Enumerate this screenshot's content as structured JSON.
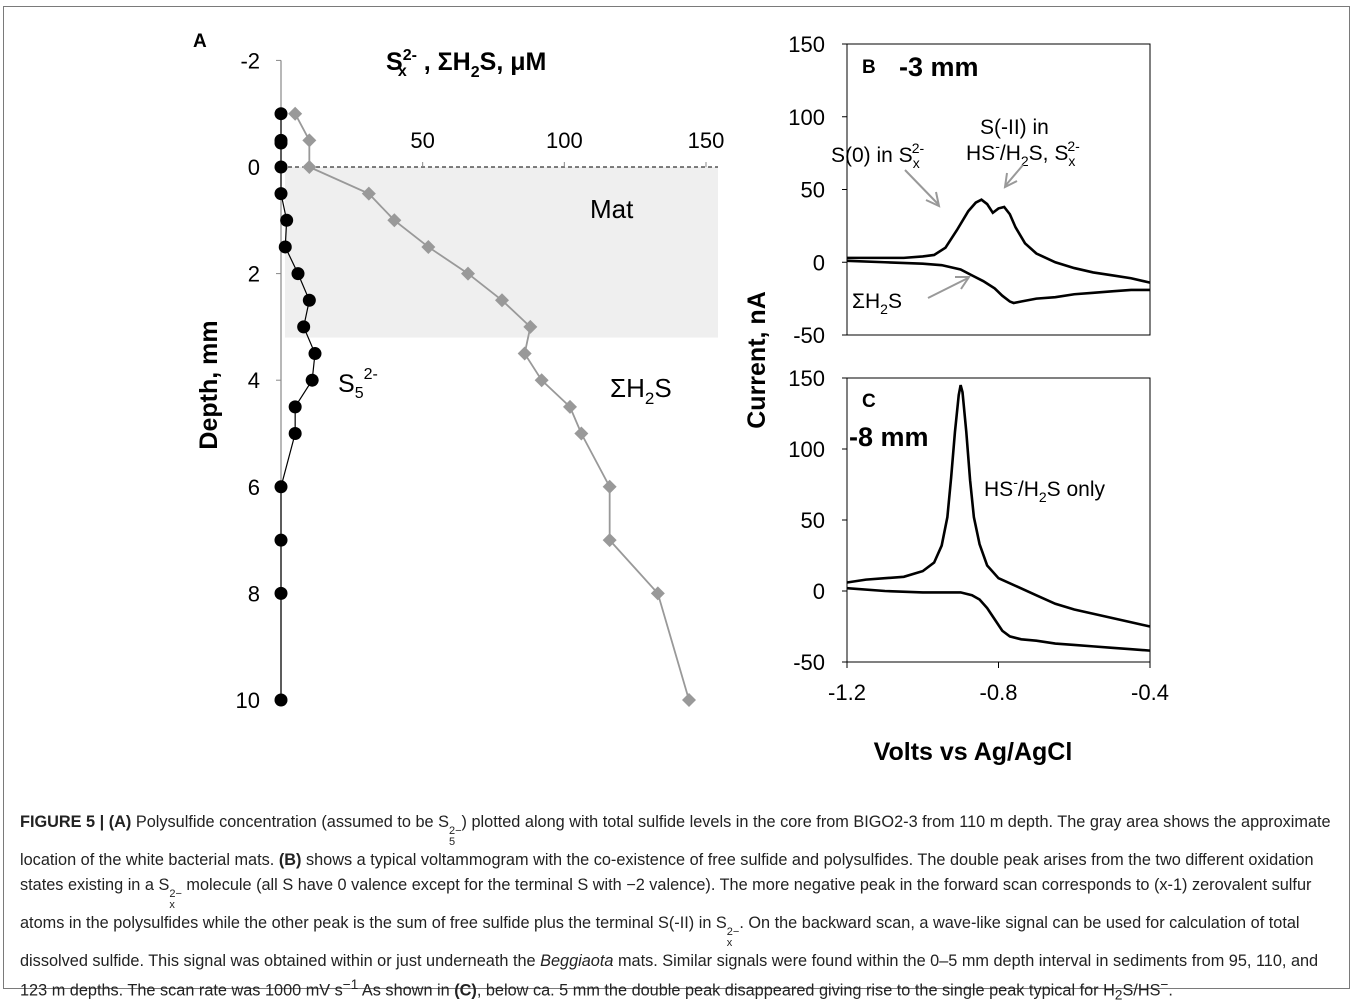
{
  "chart_data": [
    {
      "panel_label": "A",
      "type": "scatter",
      "xlabel_parts": [
        "S",
        "x",
        "2-",
        " , ΣH",
        "2",
        "S, μM"
      ],
      "ylabel": "Depth, mm",
      "xlim": [
        0,
        150
      ],
      "ylim": [
        -2,
        10
      ],
      "x_ticks": [
        "50",
        "100",
        "150"
      ],
      "y_ticks": [
        "-2",
        "0",
        "2",
        "4",
        "6",
        "8",
        "10"
      ],
      "shaded_region": {
        "depth": [
          0,
          3.2
        ],
        "label": "Mat"
      },
      "series": [
        {
          "label_parts": [
            "S",
            "5",
            "2-"
          ],
          "color": "#000000",
          "marker": "circle",
          "points": [
            [
              0,
              -1
            ],
            [
              0,
              -0.5
            ],
            [
              0,
              -0.45
            ],
            [
              0,
              0
            ],
            [
              0,
              0.5
            ],
            [
              2,
              1
            ],
            [
              1.5,
              1.5
            ],
            [
              6,
              2
            ],
            [
              10,
              2.5
            ],
            [
              8,
              3
            ],
            [
              12,
              3.5
            ],
            [
              11,
              4
            ],
            [
              5,
              4.5
            ],
            [
              5,
              5
            ],
            [
              0,
              6
            ],
            [
              0,
              7
            ],
            [
              0,
              8
            ],
            [
              0,
              10
            ]
          ]
        },
        {
          "label_parts": [
            "ΣH",
            "2",
            "S"
          ],
          "color": "#999999",
          "marker": "diamond",
          "points": [
            [
              5,
              -1
            ],
            [
              10,
              -0.5
            ],
            [
              10,
              0
            ],
            [
              31,
              0.5
            ],
            [
              40,
              1
            ],
            [
              52,
              1.5
            ],
            [
              66,
              2
            ],
            [
              78,
              2.5
            ],
            [
              88,
              3
            ],
            [
              86,
              3.5
            ],
            [
              92,
              4
            ],
            [
              102,
              4.5
            ],
            [
              106,
              5
            ],
            [
              116,
              6
            ],
            [
              116,
              7
            ],
            [
              133,
              8
            ],
            [
              144,
              10
            ]
          ]
        }
      ]
    },
    {
      "panel_label": "B",
      "title": "-3 mm",
      "type": "line",
      "xlim": [
        -1.2,
        -0.4
      ],
      "ylim": [
        -50,
        150
      ],
      "y_ticks": [
        "150",
        "100",
        "50",
        "0",
        "-50"
      ],
      "annotations": [
        {
          "parts": [
            "S(0) in S",
            "x",
            "2-"
          ]
        },
        {
          "parts": [
            "S(-II) in"
          ]
        },
        {
          "parts": [
            "HS",
            "-",
            "/H",
            "2",
            "S, S",
            "x",
            "2-"
          ]
        },
        {
          "parts": [
            "ΣH",
            "2",
            "S"
          ]
        }
      ],
      "series": [
        {
          "name": "forward",
          "color": "#000000",
          "x": [
            -1.2,
            -1.15,
            -1.1,
            -1.05,
            -1.0,
            -0.97,
            -0.94,
            -0.91,
            -0.88,
            -0.86,
            -0.845,
            -0.83,
            -0.815,
            -0.8,
            -0.785,
            -0.77,
            -0.755,
            -0.73,
            -0.7,
            -0.65,
            -0.6,
            -0.55,
            -0.5,
            -0.45,
            -0.4
          ],
          "y": [
            3,
            3,
            3,
            3,
            4,
            5,
            10,
            22,
            35,
            41,
            43,
            40,
            34,
            37,
            38,
            33,
            24,
            13,
            6,
            0,
            -4,
            -7,
            -9,
            -11,
            -14
          ]
        },
        {
          "name": "backward",
          "color": "#000000",
          "x": [
            -1.2,
            -1.1,
            -1.0,
            -0.95,
            -0.9,
            -0.87,
            -0.84,
            -0.81,
            -0.79,
            -0.77,
            -0.76,
            -0.74,
            -0.7,
            -0.65,
            -0.6,
            -0.55,
            -0.5,
            -0.45,
            -0.4
          ],
          "y": [
            1,
            0,
            -1,
            -2,
            -5,
            -9,
            -13,
            -18,
            -23,
            -27,
            -28,
            -27,
            -25,
            -24,
            -22,
            -21,
            -20,
            -19,
            -19
          ]
        }
      ]
    },
    {
      "panel_label": "C",
      "title": "-8 mm",
      "type": "line",
      "xlabel": "Volts vs Ag/AgCl",
      "ylabel": "Current, nA",
      "xlim": [
        -1.2,
        -0.4
      ],
      "ylim": [
        -50,
        150
      ],
      "x_ticks": [
        "-1.2",
        "-0.8",
        "-0.4"
      ],
      "y_ticks": [
        "150",
        "100",
        "50",
        "0",
        "-50"
      ],
      "annotations": [
        {
          "parts": [
            "HS",
            "-",
            "/H",
            "2",
            "S only"
          ]
        }
      ],
      "series": [
        {
          "name": "forward",
          "color": "#000000",
          "x": [
            -1.2,
            -1.15,
            -1.1,
            -1.05,
            -1.0,
            -0.97,
            -0.95,
            -0.935,
            -0.925,
            -0.915,
            -0.905,
            -0.9,
            -0.895,
            -0.885,
            -0.875,
            -0.865,
            -0.85,
            -0.83,
            -0.8,
            -0.75,
            -0.7,
            -0.65,
            -0.6,
            -0.55,
            -0.5,
            -0.45,
            -0.4
          ],
          "y": [
            6,
            8,
            9,
            10,
            14,
            20,
            32,
            52,
            80,
            112,
            138,
            145,
            140,
            112,
            78,
            52,
            33,
            18,
            9,
            3,
            -3,
            -9,
            -13,
            -16,
            -19,
            -22,
            -25
          ]
        },
        {
          "name": "backward",
          "color": "#000000",
          "x": [
            -1.2,
            -1.1,
            -1.0,
            -0.95,
            -0.9,
            -0.87,
            -0.85,
            -0.83,
            -0.81,
            -0.79,
            -0.77,
            -0.74,
            -0.7,
            -0.65,
            -0.6,
            -0.55,
            -0.5,
            -0.45,
            -0.4
          ],
          "y": [
            2,
            0,
            -1,
            -1,
            -1,
            -3,
            -6,
            -12,
            -20,
            -28,
            -32,
            -34,
            -35,
            -37,
            -38,
            -39,
            -40,
            -41,
            -42
          ]
        }
      ]
    }
  ],
  "caption": {
    "figure_label": "FIGURE 5 | ",
    "a": "(A)",
    "t1": " Polysulfide concentration (assumed to be S",
    "s5_sup": "2−",
    "s5_sub": "5",
    "t2": ") plotted along with total sulfide levels in the core from BIGO2-3 from 110 m depth. The gray area shows the approximate location of the white bacterial mats. ",
    "b": "(B)",
    "t3": " shows a typical voltammogram with the co-existence of free sulfide and polysulfides. The double peak arises from the two different oxidation states existing in a S",
    "sx_sup": "2−",
    "sx_sub": "x",
    "t4": " molecule (all S have 0 valence except for the terminal S with −2 valence). The more negative peak in the forward scan corresponds to (x-1) zerovalent sulfur atoms in the polysulfides while the other peak is the sum of free sulfide plus the terminal S(-II) in S",
    "sx2_sup": "2−",
    "sx2_sub": "x",
    "t5": ". On the backward scan, a wave-like signal can be used for calculation of total dissolved sulfide. This signal was obtained within or just underneath the ",
    "italic": "Beggiaota",
    "t6": " mats. Similar signals were found within the 0–5 mm depth interval in sediments from 95, 110, and 123 m depths. The scan rate was 1000 mV s",
    "rate_sup": "−1",
    "t7": " As shown in ",
    "c": "(C)",
    "t8": ", below ca. 5 mm the double peak disappeared giving rise to the single peak typical for H",
    "h_sub": "2",
    "t9": "S/HS",
    "hs_sup": "−",
    "t10": "."
  }
}
